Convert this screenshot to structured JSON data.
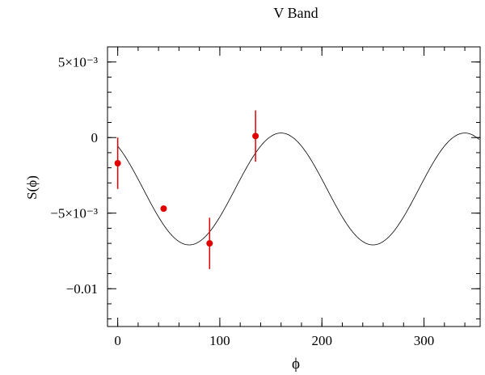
{
  "chart_data": {
    "type": "scatter",
    "title": "V Band",
    "xlabel": "ϕ",
    "ylabel": "S(ϕ)",
    "xlim": [
      -10,
      355
    ],
    "ylim": [
      -0.0125,
      0.006
    ],
    "x_ticks": [
      {
        "value": 0,
        "label": "0"
      },
      {
        "value": 100,
        "label": "100"
      },
      {
        "value": 200,
        "label": "200"
      },
      {
        "value": 300,
        "label": "300"
      }
    ],
    "x_minor_step": 20,
    "y_ticks": [
      {
        "value": 0.005,
        "label": "5×10⁻³"
      },
      {
        "value": 0,
        "label": "0"
      },
      {
        "value": -0.005,
        "label": "−5×10⁻³"
      },
      {
        "value": -0.01,
        "label": "−0.01"
      }
    ],
    "y_minor_step": 0.001,
    "series": [
      {
        "kind": "points_with_errorbars",
        "color": "#e00000",
        "points": [
          {
            "x": 0,
            "y": -0.0017,
            "err": 0.0017
          },
          {
            "x": 45,
            "y": -0.0047,
            "err": 0
          },
          {
            "x": 90,
            "y": -0.007,
            "err": 0.0017
          },
          {
            "x": 135,
            "y": 0.0001,
            "err": 0.0017
          }
        ]
      },
      {
        "kind": "model_curve",
        "color": "#000000",
        "model": {
          "offset": -0.0034,
          "amplitude": 0.0037,
          "period": 180,
          "phase_deg": 340
        }
      }
    ],
    "grid": false,
    "legend": "none"
  }
}
